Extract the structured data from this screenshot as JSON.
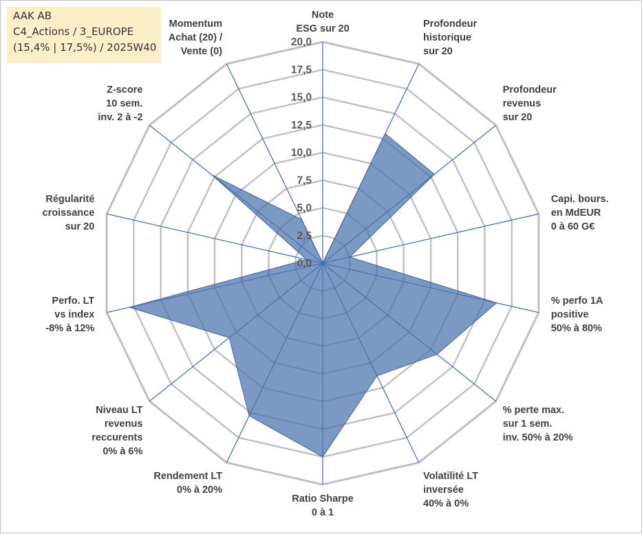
{
  "info": {
    "line1": "AAK AB",
    "line2": "C4_Actions / 3_EUROPE",
    "line3": "(15,4% | 17,5%) / 2025W40"
  },
  "chart_data": {
    "type": "radar",
    "title": "",
    "axes": [
      [
        "Note",
        "ESG sur 20"
      ],
      [
        "Profondeur",
        "historique",
        "sur 20"
      ],
      [
        "Profondeur",
        "revenus",
        "sur 20"
      ],
      [
        "Capi. bours.",
        "en MdEUR",
        "0 à 60 G€"
      ],
      [
        "% perfo 1A",
        "positive",
        "50% à 80%"
      ],
      [
        "% perte max.",
        "sur 1 sem.",
        "inv. 50% à 20%"
      ],
      [
        "Volatilité LT",
        "inversée",
        "40% à 0%"
      ],
      [
        "Ratio Sharpe",
        "0 à 1"
      ],
      [
        "Rendement LT",
        "0% à 20%"
      ],
      [
        "Niveau LT",
        "revenus",
        "reccurents",
        "0% à 6%"
      ],
      [
        "Perfo. LT",
        "vs index",
        "-8% à 12%"
      ],
      [
        "Régularité",
        "croissance",
        "sur 20"
      ],
      [
        "Z-score",
        "10 sem.",
        "inv. 2 à -2"
      ],
      [
        "Momentum",
        "Achat (20) /",
        "Vente (0)"
      ]
    ],
    "series": [
      {
        "values": [
          0,
          13.0,
          12.9,
          2.5,
          16.1,
          13.2,
          11.3,
          17.5,
          15.3,
          10.8,
          17.9,
          1.5,
          12.8,
          4.4
        ]
      }
    ],
    "ylim": [
      0,
      20
    ],
    "ticks": [
      "0,0",
      "2,5",
      "5,0",
      "7,5",
      "10,0",
      "12,5",
      "15,0",
      "17,5",
      "20,0"
    ],
    "grid": true,
    "colors": {
      "fill": "#4a72ac",
      "fill_opacity": 0.72,
      "spoke": "#4472c4",
      "grid": "#bfbfbf"
    }
  }
}
